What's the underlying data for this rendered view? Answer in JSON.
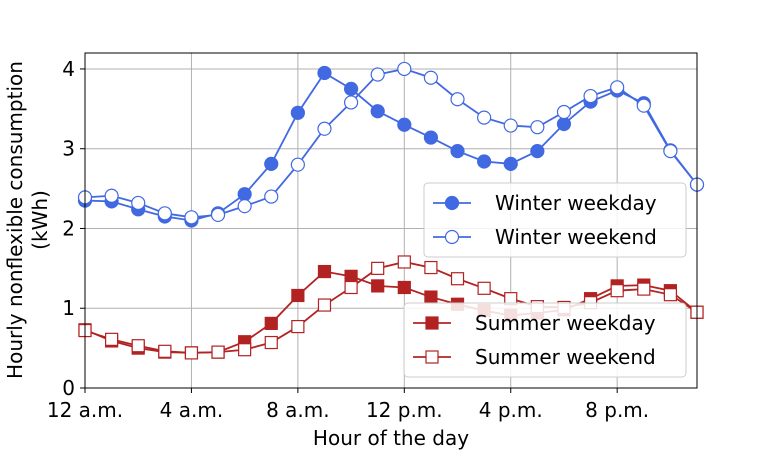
{
  "chart_data": {
    "type": "line",
    "title": "",
    "xlabel": "Hour of the day",
    "ylabel_lines": [
      "Hourly nonflexible consumption",
      "(kWh)"
    ],
    "xlim": [
      0,
      23
    ],
    "ylim": [
      0,
      4.2
    ],
    "grid": true,
    "x": [
      0,
      1,
      2,
      3,
      4,
      5,
      6,
      7,
      8,
      9,
      10,
      11,
      12,
      13,
      14,
      15,
      16,
      17,
      18,
      19,
      20,
      21,
      22,
      23
    ],
    "xticks": [
      {
        "value": 0,
        "label": "12 a.m."
      },
      {
        "value": 4,
        "label": "4 a.m."
      },
      {
        "value": 8,
        "label": "8 a.m."
      },
      {
        "value": 12,
        "label": "12 p.m."
      },
      {
        "value": 16,
        "label": "4 p.m."
      },
      {
        "value": 20,
        "label": "8 p.m."
      }
    ],
    "yticks": [
      {
        "value": 0,
        "label": "0"
      },
      {
        "value": 1,
        "label": "1"
      },
      {
        "value": 2,
        "label": "2"
      },
      {
        "value": 3,
        "label": "3"
      },
      {
        "value": 4,
        "label": "4"
      }
    ],
    "series": [
      {
        "name": "Winter weekday",
        "color": "#4169e1",
        "marker": "circle",
        "filled": true,
        "values": [
          2.35,
          2.34,
          2.24,
          2.15,
          2.1,
          2.19,
          2.43,
          2.81,
          3.45,
          3.95,
          3.75,
          3.47,
          3.3,
          3.14,
          2.97,
          2.84,
          2.81,
          2.97,
          3.31,
          3.59,
          3.73,
          3.57,
          2.98,
          2.55
        ]
      },
      {
        "name": "Winter weekend",
        "color": "#4169e1",
        "marker": "circle",
        "filled": false,
        "values": [
          2.39,
          2.41,
          2.32,
          2.19,
          2.14,
          2.17,
          2.28,
          2.4,
          2.8,
          3.25,
          3.58,
          3.93,
          4.0,
          3.89,
          3.62,
          3.39,
          3.29,
          3.27,
          3.46,
          3.66,
          3.77,
          3.54,
          2.97,
          2.55
        ]
      },
      {
        "name": "Summer weekday",
        "color": "#b22222",
        "marker": "square",
        "filled": true,
        "values": [
          0.73,
          0.59,
          0.5,
          0.45,
          0.44,
          0.45,
          0.58,
          0.81,
          1.16,
          1.46,
          1.4,
          1.28,
          1.26,
          1.14,
          1.05,
          0.97,
          0.91,
          0.94,
          0.98,
          1.12,
          1.28,
          1.29,
          1.22,
          0.95
        ]
      },
      {
        "name": "Summer weekend",
        "color": "#b22222",
        "marker": "square",
        "filled": false,
        "values": [
          0.72,
          0.61,
          0.53,
          0.46,
          0.44,
          0.45,
          0.48,
          0.57,
          0.77,
          1.04,
          1.26,
          1.5,
          1.58,
          1.51,
          1.37,
          1.25,
          1.12,
          1.02,
          1.01,
          1.07,
          1.22,
          1.24,
          1.17,
          0.95
        ]
      }
    ],
    "legends": [
      {
        "placement": "center-right",
        "series": [
          "Winter weekday",
          "Winter weekend"
        ]
      },
      {
        "placement": "lower-right",
        "series": [
          "Summer weekday",
          "Summer weekend"
        ]
      }
    ]
  }
}
